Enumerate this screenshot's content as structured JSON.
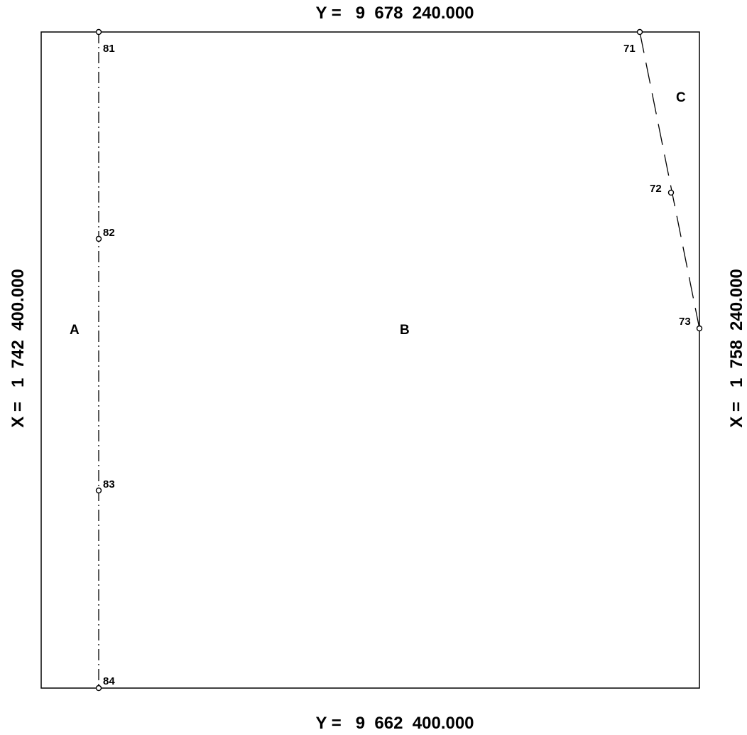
{
  "coordinates": {
    "top": "Y =   9  678  240.000",
    "bottom": "Y =   9  662  400.000",
    "left": "X =   1  742  400.000",
    "right": "X =   1  758  240.000"
  },
  "zones": {
    "a": "A",
    "b": "B",
    "c": "C"
  },
  "points": {
    "p71": "71",
    "p72": "72",
    "p73": "73",
    "p81": "81",
    "p82": "82",
    "p83": "83",
    "p84": "84"
  }
}
